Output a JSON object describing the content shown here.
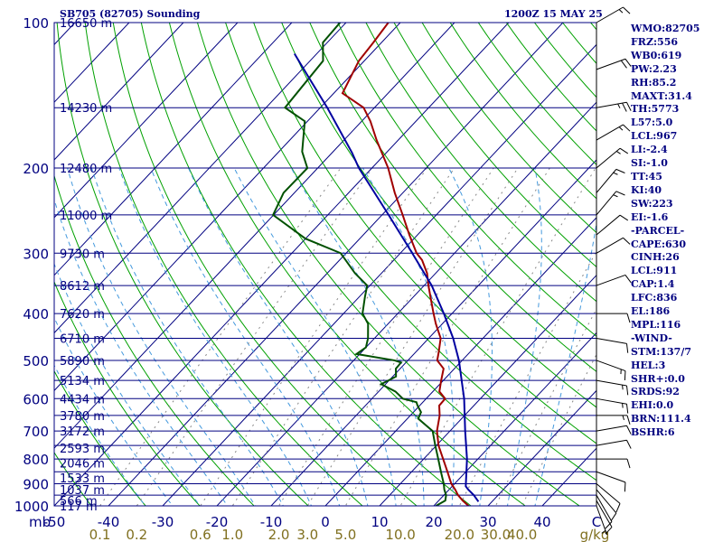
{
  "header": {
    "station": "SB705 (82705) Sounding",
    "time": "1200Z 15 MAY 25"
  },
  "parameters": [
    "WMO:82705",
    "FRZ:556",
    "WB0:619",
    "PW:2.23",
    "RH:85.2",
    "MAXT:31.4",
    "TH:5773",
    "L57:5.0",
    "LCL:967",
    "LI:-2.4",
    "SI:-1.0",
    "TT:45",
    "KI:40",
    "SW:223",
    "EI:-1.6",
    "-PARCEL-",
    "CAPE:630",
    "CINH:26",
    "LCL:911",
    "CAP:1.4",
    "LFC:836",
    "EL:186",
    "MPL:116",
    "-WIND-",
    "STM:137/7",
    "HEL:3",
    "SHR+:0.0",
    "SRDS:92",
    "EHI:0.0",
    "BRN:111.4",
    "BSHR:6"
  ],
  "colors": {
    "frame": "#000080",
    "isotherm": "#000080",
    "dry_adiabat": "#00a000",
    "moist_adiabat": "#4499dd",
    "mixing_ratio": "#888888",
    "temperature": "#a00000",
    "dewpoint": "#005000",
    "parcel": "#0000a0",
    "labels": "#000080",
    "mixing_labels": "#807020"
  },
  "chart_data": {
    "type": "line",
    "title": "SB705 (82705) Sounding",
    "chart_kind": "skew-T log-P thermodynamic diagram",
    "pressure_unit": "mb",
    "temperature_unit": "C",
    "x_range_C": [
      -50,
      50
    ],
    "pressure_range_mb": [
      1000,
      100
    ],
    "pressure_ticks": [
      1000,
      900,
      800,
      700,
      600,
      500,
      400,
      300,
      200,
      100
    ],
    "pressure_tick_labels": [
      "1000",
      "900",
      "800",
      "700",
      "600",
      "500",
      "400",
      "300",
      "200",
      "100"
    ],
    "temperature_ticks": [
      -50,
      -40,
      -30,
      -20,
      -10,
      0,
      10,
      20,
      30,
      40
    ],
    "temperature_tick_labels": [
      "-50",
      "-40",
      "-30",
      "-20",
      "-10",
      "0",
      "10",
      "20",
      "30",
      "40"
    ],
    "x_axis_corner_labels": {
      "left": "mb",
      "right": "C"
    },
    "mixing_ratio_unit": "g/kg",
    "mixing_ratio_lines": [
      0.1,
      0.2,
      0.6,
      1.0,
      2.0,
      3.0,
      5.0,
      10.0,
      20.0,
      30.0,
      40.0
    ],
    "mixing_ratio_labels": [
      "0.1",
      "0.2",
      "0.6",
      "1.0",
      "2.0",
      "3.0",
      "5.0",
      "10.0",
      "20.0",
      "30.0",
      "40.0"
    ],
    "height_levels": [
      {
        "p": 1000,
        "label": "117 m"
      },
      {
        "p": 975,
        "label": "566 m"
      },
      {
        "p": 925,
        "label": "1037 m"
      },
      {
        "p": 875,
        "label": "1533 m"
      },
      {
        "p": 815,
        "label": "2046 m"
      },
      {
        "p": 760,
        "label": "2593 m"
      },
      {
        "p": 700,
        "label": "3172 m"
      },
      {
        "p": 650,
        "label": "3780 m"
      },
      {
        "p": 600,
        "label": "4434 m"
      },
      {
        "p": 550,
        "label": "5134 m"
      },
      {
        "p": 500,
        "label": "5890 m"
      },
      {
        "p": 450,
        "label": "6710 m"
      },
      {
        "p": 400,
        "label": "7620 m"
      },
      {
        "p": 350,
        "label": "8612 m"
      },
      {
        "p": 300,
        "label": "9730 m"
      },
      {
        "p": 250,
        "label": "11000 m"
      },
      {
        "p": 200,
        "label": "12480 m"
      },
      {
        "p": 150,
        "label": "14230 m"
      },
      {
        "p": 100,
        "label": "16650 m"
      }
    ],
    "series": [
      {
        "key": "temperature",
        "points": [
          [
            1000,
            26.4
          ],
          [
            975,
            24.4
          ],
          [
            950,
            22.6
          ],
          [
            925,
            21.1
          ],
          [
            900,
            19.4
          ],
          [
            850,
            16.6
          ],
          [
            800,
            13.6
          ],
          [
            750,
            10.4
          ],
          [
            700,
            7.6
          ],
          [
            650,
            5.4
          ],
          [
            620,
            3.6
          ],
          [
            600,
            3.5
          ],
          [
            580,
            1.2
          ],
          [
            550,
            -0.4
          ],
          [
            520,
            -2.0
          ],
          [
            500,
            -4.6
          ],
          [
            480,
            -5.8
          ],
          [
            450,
            -7.8
          ],
          [
            420,
            -11.2
          ],
          [
            400,
            -13.4
          ],
          [
            370,
            -16.8
          ],
          [
            350,
            -19.2
          ],
          [
            330,
            -21.6
          ],
          [
            310,
            -24.8
          ],
          [
            300,
            -27.0
          ],
          [
            275,
            -31.5
          ],
          [
            250,
            -36.2
          ],
          [
            225,
            -41.5
          ],
          [
            200,
            -47.0
          ],
          [
            175,
            -54.0
          ],
          [
            160,
            -58.4
          ],
          [
            150,
            -62.0
          ],
          [
            140,
            -68.4
          ],
          [
            120,
            -71.0
          ],
          [
            110,
            -71.5
          ],
          [
            100,
            -72.2
          ]
        ]
      },
      {
        "key": "dewpoint",
        "points": [
          [
            1000,
            20.4
          ],
          [
            975,
            21.2
          ],
          [
            950,
            20.4
          ],
          [
            925,
            19.1
          ],
          [
            900,
            18.0
          ],
          [
            850,
            15.4
          ],
          [
            800,
            12.7
          ],
          [
            750,
            9.8
          ],
          [
            700,
            6.8
          ],
          [
            660,
            2.0
          ],
          [
            640,
            1.4
          ],
          [
            620,
            -0.4
          ],
          [
            610,
            -1.2
          ],
          [
            600,
            -4.3
          ],
          [
            580,
            -6.9
          ],
          [
            560,
            -10.8
          ],
          [
            540,
            -9.4
          ],
          [
            520,
            -10.8
          ],
          [
            505,
            -10.9
          ],
          [
            500,
            -12.5
          ],
          [
            485,
            -20.6
          ],
          [
            470,
            -20.0
          ],
          [
            450,
            -21.2
          ],
          [
            420,
            -23.7
          ],
          [
            400,
            -26.5
          ],
          [
            370,
            -28.9
          ],
          [
            350,
            -30.5
          ],
          [
            330,
            -34.9
          ],
          [
            300,
            -41.0
          ],
          [
            280,
            -50.0
          ],
          [
            250,
            -60.1
          ],
          [
            225,
            -62.0
          ],
          [
            200,
            -61.9
          ],
          [
            185,
            -65.7
          ],
          [
            160,
            -70.5
          ],
          [
            150,
            -76.5
          ],
          [
            120,
            -77.6
          ],
          [
            110,
            -80.8
          ],
          [
            100,
            -81.1
          ]
        ]
      },
      {
        "key": "parcel",
        "points": [
          [
            980,
            27.5
          ],
          [
            950,
            25.5
          ],
          [
            925,
            23.5
          ],
          [
            911,
            22.5
          ],
          [
            850,
            20.1
          ],
          [
            800,
            18.0
          ],
          [
            700,
            12.8
          ],
          [
            600,
            7.0
          ],
          [
            500,
            -0.6
          ],
          [
            450,
            -5.5
          ],
          [
            400,
            -11.5
          ],
          [
            350,
            -18.6
          ],
          [
            300,
            -27.8
          ],
          [
            250,
            -38.8
          ],
          [
            200,
            -52.4
          ],
          [
            186,
            -56.3
          ],
          [
            150,
            -68.7
          ],
          [
            130,
            -77.3
          ],
          [
            116,
            -84.1
          ]
        ]
      }
    ],
    "wind_barbs": [
      {
        "p": 1000,
        "dir": 160,
        "kt": 5
      },
      {
        "p": 975,
        "dir": 150,
        "kt": 10
      },
      {
        "p": 950,
        "dir": 150,
        "kt": 10
      },
      {
        "p": 925,
        "dir": 140,
        "kt": 10
      },
      {
        "p": 900,
        "dir": 130,
        "kt": 10
      },
      {
        "p": 850,
        "dir": 110,
        "kt": 10
      },
      {
        "p": 800,
        "dir": 90,
        "kt": 10
      },
      {
        "p": 750,
        "dir": 80,
        "kt": 10
      },
      {
        "p": 700,
        "dir": 80,
        "kt": 10
      },
      {
        "p": 650,
        "dir": 90,
        "kt": 15
      },
      {
        "p": 600,
        "dir": 100,
        "kt": 15
      },
      {
        "p": 550,
        "dir": 100,
        "kt": 15
      },
      {
        "p": 500,
        "dir": 110,
        "kt": 15
      },
      {
        "p": 450,
        "dir": 100,
        "kt": 10
      },
      {
        "p": 400,
        "dir": 90,
        "kt": 10
      },
      {
        "p": 350,
        "dir": 70,
        "kt": 10
      },
      {
        "p": 300,
        "dir": 60,
        "kt": 10
      },
      {
        "p": 275,
        "dir": 50,
        "kt": 10
      },
      {
        "p": 250,
        "dir": 40,
        "kt": 15
      },
      {
        "p": 225,
        "dir": 40,
        "kt": 15
      },
      {
        "p": 200,
        "dir": 50,
        "kt": 15
      },
      {
        "p": 175,
        "dir": 60,
        "kt": 15
      },
      {
        "p": 150,
        "dir": 80,
        "kt": 25
      },
      {
        "p": 125,
        "dir": 70,
        "kt": 20
      },
      {
        "p": 100,
        "dir": 60,
        "kt": 15
      }
    ]
  }
}
